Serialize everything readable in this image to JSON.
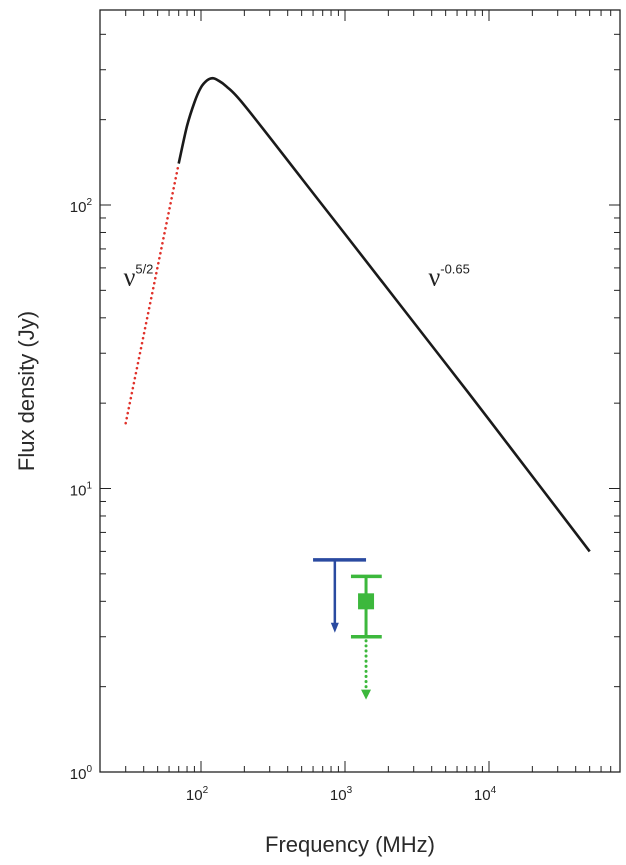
{
  "chart_data": {
    "type": "line",
    "xscale": "log",
    "yscale": "log",
    "xlabel": "Frequency (MHz)",
    "ylabel": "Flux density (Jy)",
    "xlim": [
      20,
      70000
    ],
    "ylim": [
      1,
      800
    ],
    "xticks": [
      {
        "value": 100,
        "base": "10",
        "exp": "2"
      },
      {
        "value": 1000,
        "base": "10",
        "exp": "3"
      },
      {
        "value": 10000,
        "base": "10",
        "exp": "4"
      }
    ],
    "yticks": [
      {
        "value": 1,
        "base": "10",
        "exp": "0"
      },
      {
        "value": 10,
        "base": "10",
        "exp": "1"
      },
      {
        "value": 100,
        "base": "10",
        "exp": "2"
      }
    ],
    "series": [
      {
        "style": "solid",
        "color": "#1a1a1a",
        "x": [
          70,
          80,
          90,
          100,
          110,
          120,
          130,
          150,
          200,
          500,
          1000,
          5000,
          10000,
          50000
        ],
        "y": [
          140,
          190,
          230,
          260,
          275,
          280,
          276,
          262,
          225,
          124,
          79,
          27.6,
          17.5,
          6.0
        ]
      },
      {
        "style": "dotted",
        "color": "#e0322b",
        "x": [
          30,
          70
        ],
        "y": [
          17,
          140
        ]
      }
    ],
    "upper_limits": [
      {
        "color": "#2a4aa0",
        "x": 850,
        "y": 5.6,
        "x_range": [
          600,
          1400
        ],
        "arrow_to": 3.1
      },
      {
        "color": "#3cb83c",
        "x": 1400,
        "y": 4.9,
        "x_range": [
          1100,
          1800
        ],
        "arrow_to": 3.0
      }
    ],
    "measurements": [
      {
        "color": "#3cb83c",
        "x": 1400,
        "y": 4.0,
        "y_err_low": 3.0,
        "y_err_high": 4.9,
        "cap_range": [
          1100,
          1800
        ],
        "dotted_arrow_to": 1.8
      }
    ],
    "annotations": [
      {
        "base": "ν",
        "exp": "5/2",
        "x": 29,
        "y": 52
      },
      {
        "base": "ν",
        "exp": "-0.65",
        "x": 3800,
        "y": 52
      }
    ]
  }
}
